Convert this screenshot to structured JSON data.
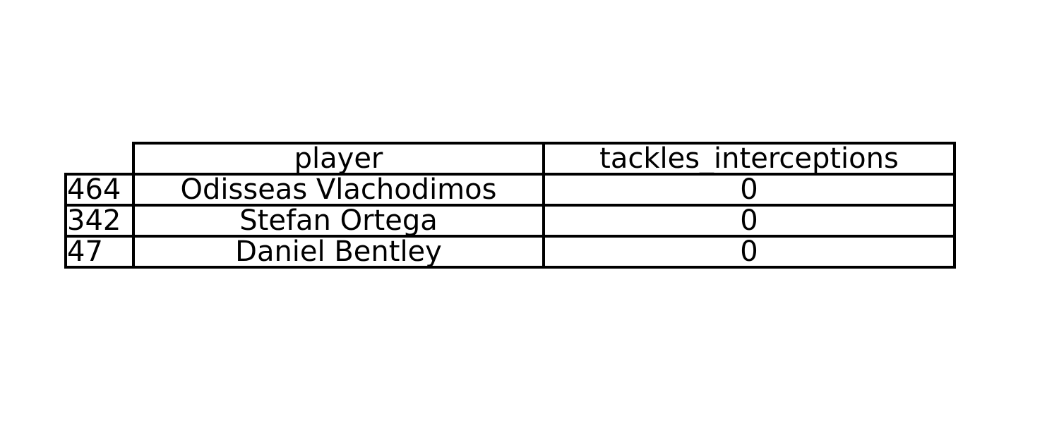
{
  "chart_data": {
    "type": "table",
    "columns": [
      "player",
      "tackles_interceptions"
    ],
    "rows": [
      {
        "index": "464",
        "player": "Odisseas Vlachodimos",
        "tackles_interceptions": "0"
      },
      {
        "index": "342",
        "player": "Stefan Ortega",
        "tackles_interceptions": "0"
      },
      {
        "index": "47",
        "player": "Daniel Bentley",
        "tackles_interceptions": "0"
      }
    ]
  }
}
